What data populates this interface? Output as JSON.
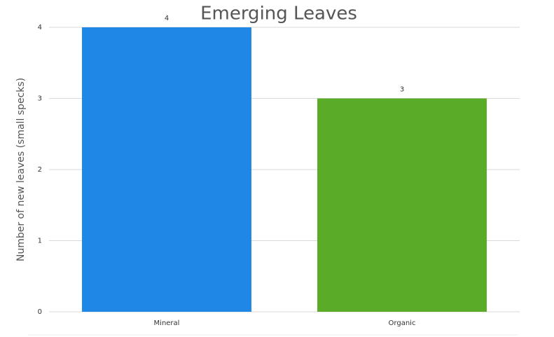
{
  "chart_data": {
    "type": "bar",
    "title": "Emerging Leaves",
    "y_label": "Number of new leaves (small specks)",
    "categories": [
      "Mineral",
      "Organic"
    ],
    "values": [
      4,
      3
    ],
    "colors": [
      "#1f87e5",
      "#5aab27"
    ],
    "ylim": [
      0,
      4
    ],
    "yticks": [
      0,
      1,
      2,
      3,
      4
    ],
    "grid": true,
    "data_labels": true
  }
}
